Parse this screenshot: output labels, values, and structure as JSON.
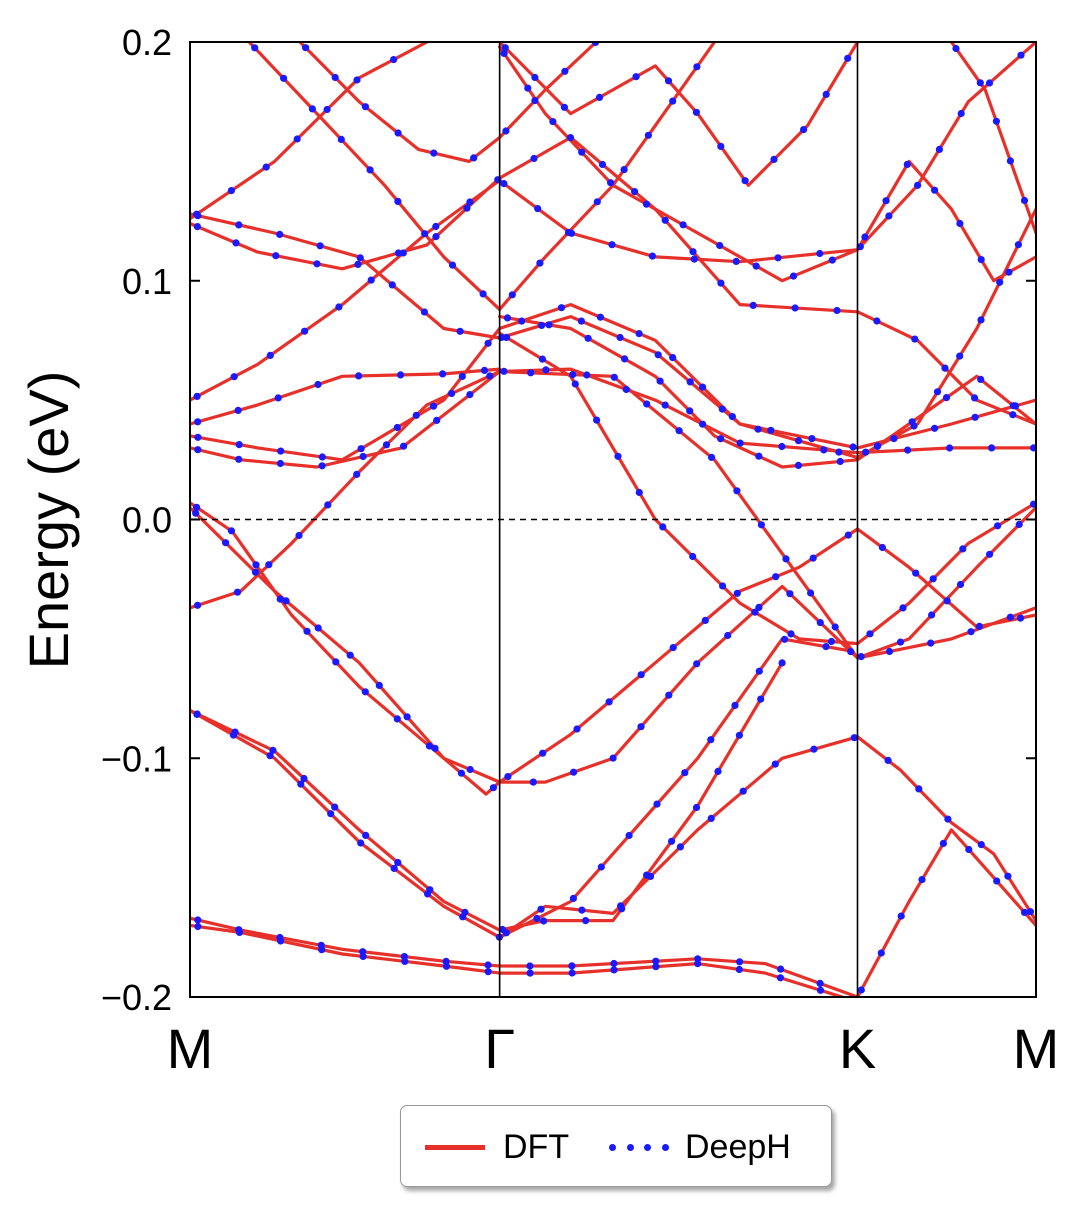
{
  "chart_data": {
    "type": "line",
    "title": "",
    "xlabel": "",
    "ylabel": "Energy (eV)",
    "ylim": [
      -0.2,
      0.2
    ],
    "yticks": [
      0.2,
      0.1,
      0.0,
      -0.1,
      -0.2
    ],
    "ytick_labels": [
      "0.2",
      "0.1",
      "0.0",
      "−0.1",
      "−0.2"
    ],
    "xlim": [
      0,
      1
    ],
    "kpoints": [
      {
        "label": "M",
        "x": 0.0
      },
      {
        "label": "Γ",
        "x": 0.366
      },
      {
        "label": "K",
        "x": 0.789
      },
      {
        "label": "M",
        "x": 1.0
      }
    ],
    "fermi_level": 0.0,
    "legend": {
      "position": "bottom-center",
      "entries": [
        "DFT",
        "DeepH"
      ]
    },
    "colors": {
      "DFT": "#e8302a",
      "DeepH": "#1a1aff"
    },
    "series": [
      {
        "name": "DFT",
        "style": "line"
      },
      {
        "name": "DeepH",
        "style": "dots"
      }
    ],
    "bands": [
      [
        [
          0,
          -0.167
        ],
        [
          0.06,
          -0.172
        ],
        [
          0.18,
          -0.18
        ],
        [
          0.3,
          -0.185
        ],
        [
          0.366,
          -0.187
        ],
        [
          0.45,
          -0.187
        ],
        [
          0.6,
          -0.184
        ],
        [
          0.68,
          -0.186
        ],
        [
          0.789,
          -0.2
        ]
      ],
      [
        [
          0,
          -0.17
        ],
        [
          0.06,
          -0.173
        ],
        [
          0.18,
          -0.182
        ],
        [
          0.3,
          -0.187
        ],
        [
          0.366,
          -0.19
        ],
        [
          0.45,
          -0.19
        ],
        [
          0.6,
          -0.186
        ],
        [
          0.68,
          -0.19
        ],
        [
          0.789,
          -0.202
        ]
      ],
      [
        [
          0.366,
          -0.175
        ],
        [
          0.42,
          -0.162
        ],
        [
          0.5,
          -0.165
        ],
        [
          0.6,
          -0.13
        ],
        [
          0.7,
          -0.1
        ],
        [
          0.789,
          -0.091
        ],
        [
          0.84,
          -0.105
        ],
        [
          0.9,
          -0.127
        ],
        [
          0.95,
          -0.14
        ],
        [
          1,
          -0.168
        ]
      ],
      [
        [
          0,
          -0.08
        ],
        [
          0.1,
          -0.1
        ],
        [
          0.2,
          -0.135
        ],
        [
          0.3,
          -0.162
        ],
        [
          0.366,
          -0.175
        ],
        [
          0.45,
          -0.16
        ],
        [
          0.6,
          -0.1
        ],
        [
          0.7,
          -0.05
        ],
        [
          0.78,
          -0.055
        ]
      ],
      [
        [
          0,
          -0.08
        ],
        [
          0.1,
          -0.097
        ],
        [
          0.2,
          -0.13
        ],
        [
          0.3,
          -0.16
        ],
        [
          0.366,
          -0.172
        ],
        [
          0.42,
          -0.168
        ],
        [
          0.5,
          -0.168
        ],
        [
          0.6,
          -0.12
        ],
        [
          0.7,
          -0.06
        ]
      ],
      [
        [
          0,
          -0.037
        ],
        [
          0.06,
          -0.03
        ],
        [
          0.12,
          -0.01
        ],
        [
          0.2,
          0.02
        ],
        [
          0.28,
          0.048
        ],
        [
          0.366,
          0.062
        ],
        [
          0.5,
          0.06
        ],
        [
          0.62,
          0.025
        ],
        [
          0.789,
          -0.058
        ],
        [
          0.85,
          -0.05
        ],
        [
          0.93,
          -0.02
        ],
        [
          1,
          0.005
        ]
      ],
      [
        [
          0,
          0.007
        ],
        [
          0.05,
          -0.005
        ],
        [
          0.12,
          -0.04
        ],
        [
          0.2,
          -0.07
        ],
        [
          0.3,
          -0.1
        ],
        [
          0.35,
          -0.115
        ],
        [
          0.366,
          -0.11
        ],
        [
          0.42,
          -0.11
        ],
        [
          0.5,
          -0.1
        ],
        [
          0.6,
          -0.06
        ],
        [
          0.7,
          -0.028
        ],
        [
          0.789,
          -0.058
        ],
        [
          0.9,
          -0.05
        ],
        [
          1,
          -0.037
        ]
      ],
      [
        [
          0,
          0.005
        ],
        [
          0.1,
          -0.03
        ],
        [
          0.2,
          -0.06
        ],
        [
          0.3,
          -0.1
        ],
        [
          0.366,
          -0.11
        ],
        [
          0.45,
          -0.09
        ],
        [
          0.55,
          -0.06
        ],
        [
          0.65,
          -0.03
        ],
        [
          0.72,
          -0.02
        ],
        [
          0.789,
          -0.004
        ],
        [
          0.85,
          -0.02
        ],
        [
          0.93,
          -0.045
        ],
        [
          1,
          -0.04
        ]
      ],
      [
        [
          0.366,
          0.078
        ],
        [
          0.45,
          0.06
        ],
        [
          0.55,
          0.0
        ],
        [
          0.65,
          -0.035
        ],
        [
          0.72,
          -0.05
        ],
        [
          0.789,
          -0.052
        ],
        [
          0.85,
          -0.035
        ],
        [
          0.92,
          -0.01
        ],
        [
          1,
          0.007
        ]
      ],
      [
        [
          0.366,
          0.085
        ],
        [
          0.45,
          0.08
        ],
        [
          0.55,
          0.06
        ],
        [
          0.62,
          0.035
        ],
        [
          0.7,
          0.022
        ],
        [
          0.789,
          0.025
        ],
        [
          0.85,
          0.04
        ],
        [
          0.93,
          0.06
        ],
        [
          1,
          0.04
        ]
      ],
      [
        [
          0,
          0.03
        ],
        [
          0.06,
          0.025
        ],
        [
          0.15,
          0.022
        ],
        [
          0.25,
          0.03
        ],
        [
          0.366,
          0.062
        ],
        [
          0.45,
          0.063
        ],
        [
          0.55,
          0.05
        ],
        [
          0.65,
          0.032
        ],
        [
          0.789,
          0.028
        ],
        [
          0.9,
          0.03
        ],
        [
          1,
          0.03
        ]
      ],
      [
        [
          0,
          0.035
        ],
        [
          0.08,
          0.03
        ],
        [
          0.18,
          0.025
        ],
        [
          0.3,
          0.05
        ],
        [
          0.366,
          0.08
        ],
        [
          0.45,
          0.09
        ],
        [
          0.55,
          0.075
        ],
        [
          0.65,
          0.04
        ],
        [
          0.789,
          0.03
        ],
        [
          0.9,
          0.04
        ],
        [
          1,
          0.05
        ]
      ],
      [
        [
          0,
          0.04
        ],
        [
          0.08,
          0.048
        ],
        [
          0.18,
          0.06
        ],
        [
          0.3,
          0.061
        ],
        [
          0.366,
          0.063
        ]
      ],
      [
        [
          0,
          0.05
        ],
        [
          0.08,
          0.065
        ],
        [
          0.18,
          0.09
        ],
        [
          0.28,
          0.12
        ],
        [
          0.366,
          0.142
        ],
        [
          0.45,
          0.12
        ],
        [
          0.55,
          0.11
        ],
        [
          0.65,
          0.108
        ],
        [
          0.789,
          0.113
        ],
        [
          0.86,
          0.14
        ],
        [
          0.92,
          0.175
        ],
        [
          1,
          0.2
        ]
      ],
      [
        [
          0,
          0.124
        ],
        [
          0.08,
          0.112
        ],
        [
          0.18,
          0.105
        ],
        [
          0.28,
          0.115
        ],
        [
          0.366,
          0.143
        ],
        [
          0.45,
          0.16
        ],
        [
          0.55,
          0.13
        ],
        [
          0.65,
          0.09
        ],
        [
          0.789,
          0.087
        ],
        [
          0.86,
          0.075
        ],
        [
          0.93,
          0.05
        ],
        [
          1,
          0.04
        ]
      ],
      [
        [
          0,
          0.126
        ],
        [
          0.1,
          0.15
        ],
        [
          0.2,
          0.185
        ],
        [
          0.28,
          0.2
        ]
      ],
      [
        [
          0,
          0.128
        ],
        [
          0.1,
          0.12
        ],
        [
          0.2,
          0.11
        ],
        [
          0.3,
          0.08
        ],
        [
          0.366,
          0.076
        ],
        [
          0.45,
          0.085
        ],
        [
          0.55,
          0.07
        ],
        [
          0.65,
          0.04
        ],
        [
          0.789,
          0.026
        ],
        [
          0.86,
          0.04
        ],
        [
          0.93,
          0.08
        ],
        [
          1,
          0.13
        ]
      ],
      [
        [
          0.366,
          0.198
        ],
        [
          0.42,
          0.17
        ],
        [
          0.5,
          0.14
        ],
        [
          0.6,
          0.12
        ],
        [
          0.7,
          0.1
        ],
        [
          0.789,
          0.113
        ],
        [
          0.85,
          0.15
        ],
        [
          0.9,
          0.13
        ],
        [
          0.95,
          0.1
        ],
        [
          1,
          0.11
        ]
      ],
      [
        [
          0.366,
          0.2
        ],
        [
          0.45,
          0.17
        ],
        [
          0.55,
          0.19
        ],
        [
          0.6,
          0.17
        ],
        [
          0.66,
          0.14
        ],
        [
          0.73,
          0.165
        ],
        [
          0.789,
          0.2
        ]
      ],
      [
        [
          0.07,
          0.2
        ],
        [
          0.15,
          0.17
        ],
        [
          0.23,
          0.14
        ],
        [
          0.3,
          0.11
        ],
        [
          0.366,
          0.088
        ],
        [
          0.42,
          0.11
        ],
        [
          0.5,
          0.14
        ],
        [
          0.55,
          0.165
        ],
        [
          0.62,
          0.2
        ]
      ],
      [
        [
          0.13,
          0.2
        ],
        [
          0.2,
          0.175
        ],
        [
          0.27,
          0.155
        ],
        [
          0.33,
          0.15
        ],
        [
          0.366,
          0.16
        ],
        [
          0.42,
          0.18
        ],
        [
          0.48,
          0.2
        ]
      ],
      [
        [
          0.9,
          0.2
        ],
        [
          0.94,
          0.18
        ],
        [
          0.97,
          0.15
        ],
        [
          1,
          0.12
        ]
      ],
      [
        [
          0.789,
          -0.2
        ],
        [
          0.85,
          -0.16
        ],
        [
          0.9,
          -0.13
        ],
        [
          0.95,
          -0.15
        ],
        [
          1,
          -0.17
        ]
      ]
    ]
  },
  "legend_labels": {
    "dft": "DFT",
    "deeph": "DeepH"
  }
}
